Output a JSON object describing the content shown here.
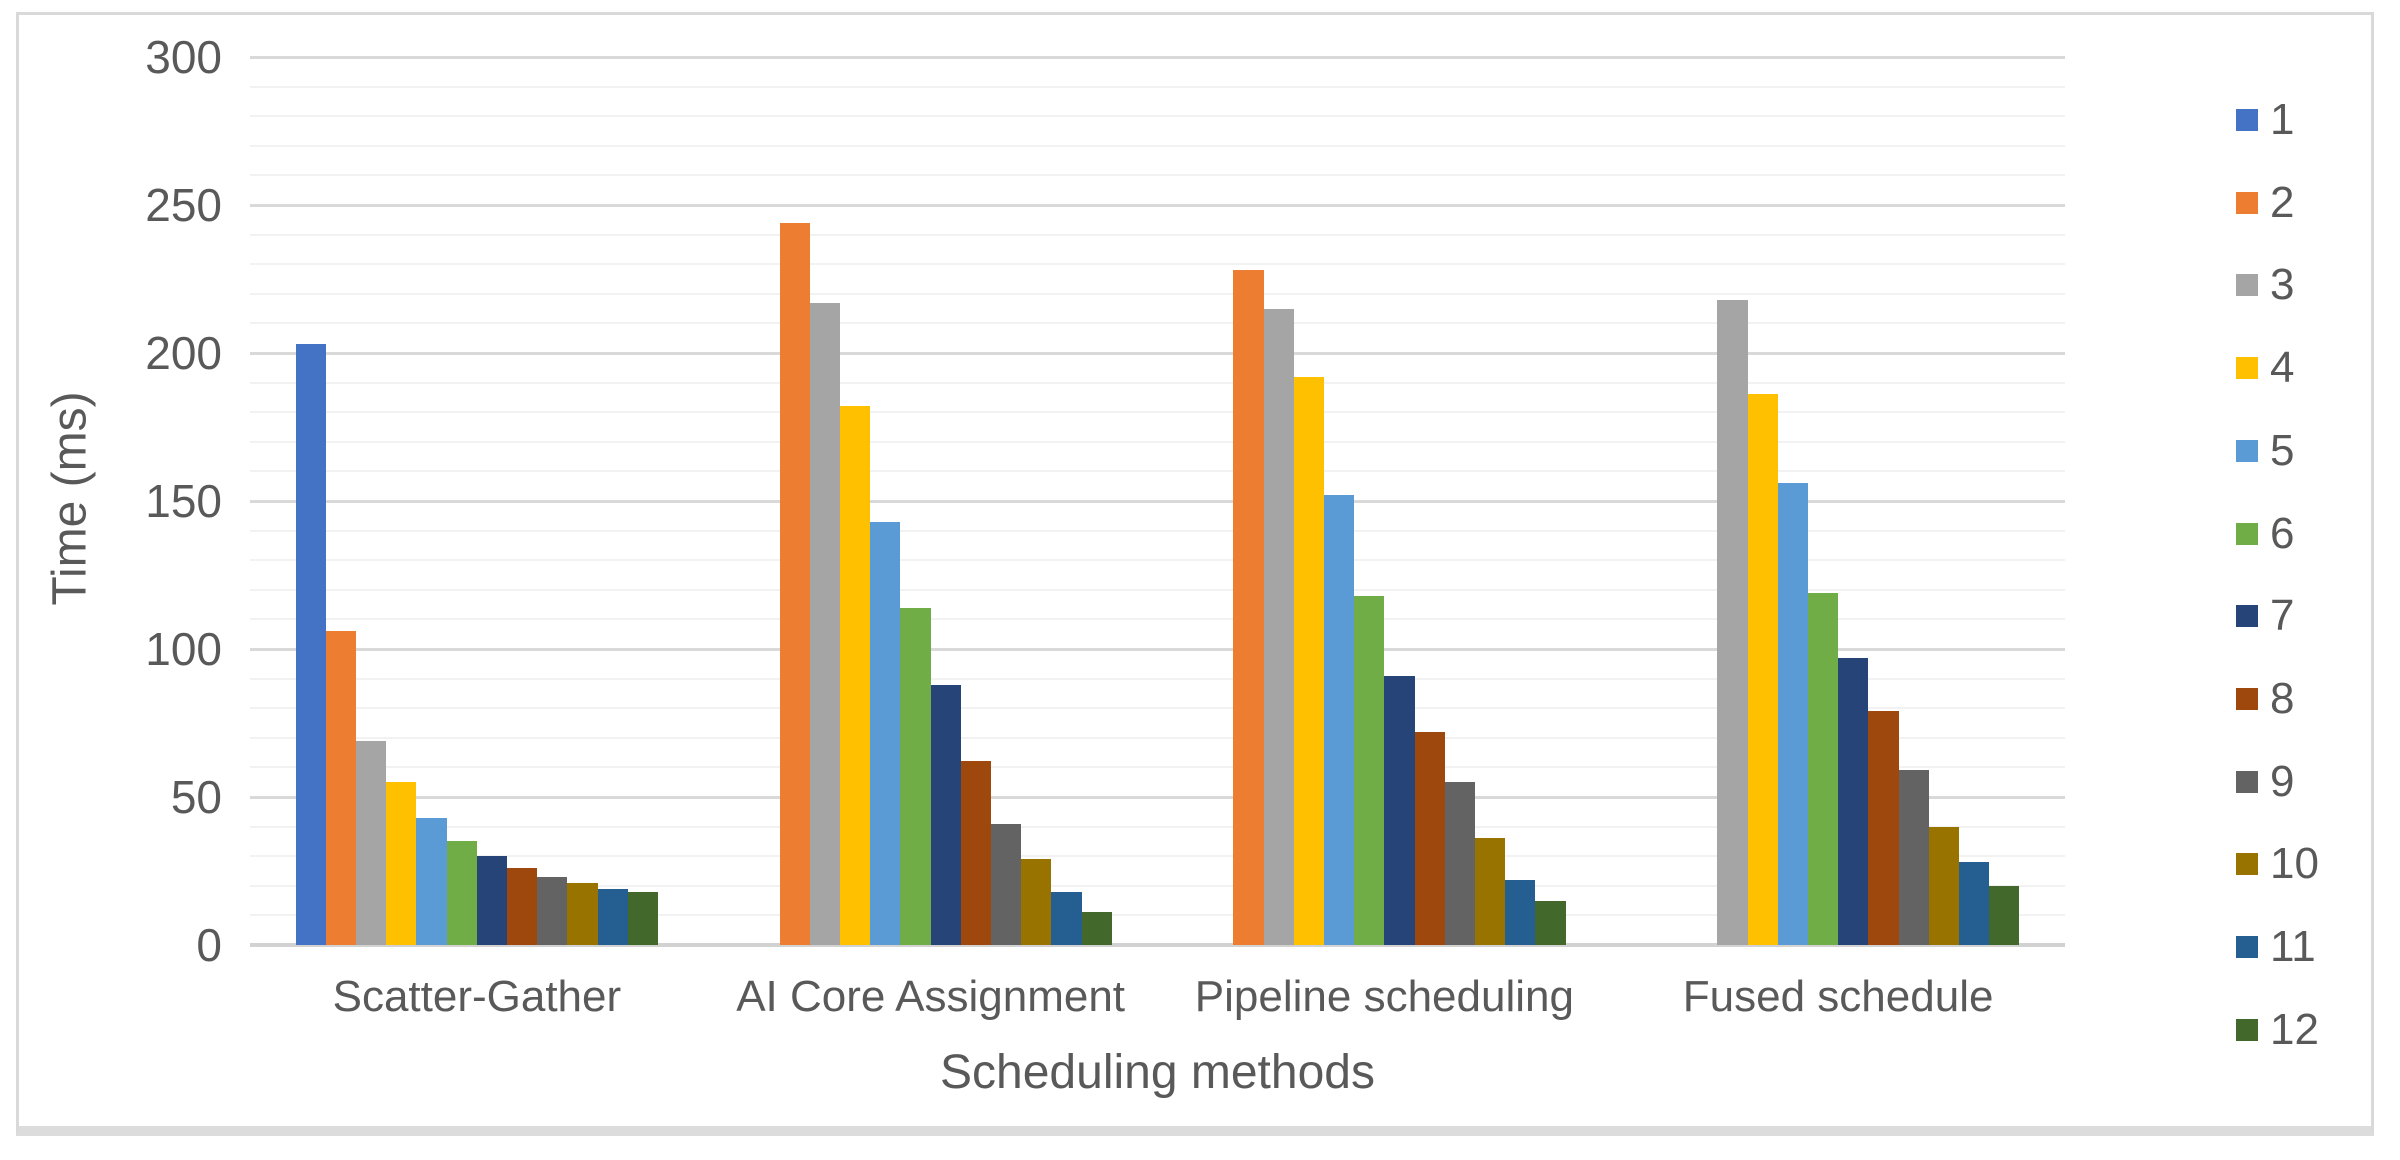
{
  "chart_data": {
    "type": "bar",
    "title": "",
    "xlabel": "Scheduling methods",
    "ylabel": "Time (ms)",
    "ylim": [
      0,
      300
    ],
    "y_major_step": 50,
    "y_minor_step": 10,
    "grid": "major+minor horizontal",
    "legend_position": "right",
    "y_tick_labels": [
      "0",
      "50",
      "100",
      "150",
      "200",
      "250",
      "300"
    ],
    "categories": [
      "Scatter-Gather",
      "AI Core Assignment",
      "Pipeline scheduling",
      "Fused schedule"
    ],
    "series": [
      {
        "name": "1",
        "color": "#4472C4",
        "values": [
          203,
          null,
          null,
          null
        ]
      },
      {
        "name": "2",
        "color": "#ED7D31",
        "values": [
          106,
          244,
          228,
          null
        ]
      },
      {
        "name": "3",
        "color": "#A5A5A5",
        "values": [
          69,
          217,
          215,
          218
        ]
      },
      {
        "name": "4",
        "color": "#FFC000",
        "values": [
          55,
          182,
          192,
          186
        ]
      },
      {
        "name": "5",
        "color": "#5B9BD5",
        "values": [
          43,
          143,
          152,
          156
        ]
      },
      {
        "name": "6",
        "color": "#70AD47",
        "values": [
          35,
          114,
          118,
          119
        ]
      },
      {
        "name": "7",
        "color": "#264478",
        "values": [
          30,
          88,
          91,
          97
        ]
      },
      {
        "name": "8",
        "color": "#9E480E",
        "values": [
          26,
          62,
          72,
          79
        ]
      },
      {
        "name": "9",
        "color": "#636363",
        "values": [
          23,
          41,
          55,
          59
        ]
      },
      {
        "name": "10",
        "color": "#997300",
        "values": [
          21,
          29,
          36,
          40
        ]
      },
      {
        "name": "11",
        "color": "#255E91",
        "values": [
          19,
          18,
          22,
          28
        ]
      },
      {
        "name": "12",
        "color": "#43682B",
        "values": [
          18,
          11,
          15,
          20
        ]
      }
    ]
  },
  "style": {
    "frame_border_color": "#d9d9d9",
    "major_gridline_color": "#d9d9d9",
    "minor_gridline_color": "#f2f2f2",
    "axis_line_color": "#d2d2d2",
    "text_color": "#595959",
    "background_color": "#ffffff"
  }
}
